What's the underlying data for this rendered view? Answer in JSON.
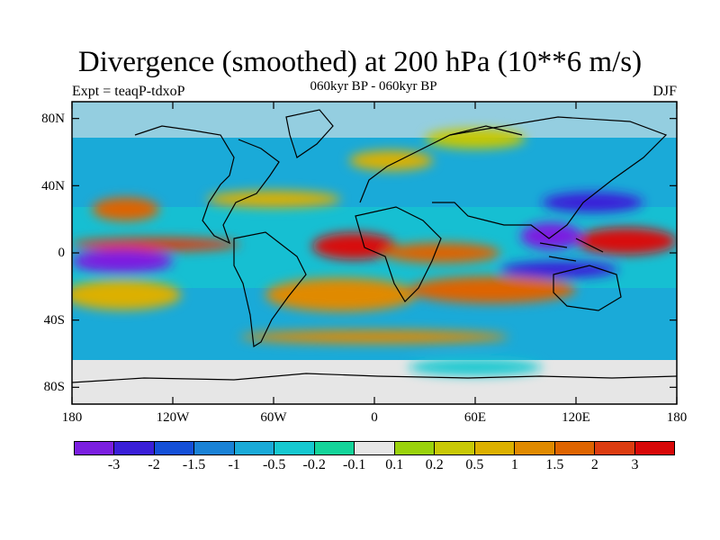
{
  "header": {
    "title": "Divergence (smoothed) at 200 hPa (10**6 m/s)",
    "left_label": "Expt = teaqP-tdxoP",
    "center_label": "060kyr BP - 060kyr BP",
    "right_label": "DJF"
  },
  "axes": {
    "lat_labels": [
      "80N",
      "40N",
      "0",
      "40S",
      "80S"
    ],
    "lon_labels": [
      "180",
      "120W",
      "60W",
      "0",
      "60E",
      "120E",
      "180"
    ]
  },
  "colorbar": {
    "colors": [
      "#7b1fe0",
      "#3a1fd8",
      "#1450d8",
      "#1a82d6",
      "#1aaad8",
      "#16c8d0",
      "#14d49a",
      "#e6e6e6",
      "#9ad20c",
      "#c8c806",
      "#dcb000",
      "#e08a00",
      "#de6400",
      "#dc3c10",
      "#d80808"
    ],
    "labels": [
      "-3",
      "-2",
      "-1.5",
      "-1",
      "-0.5",
      "-0.2",
      "-0.1",
      "0.1",
      "0.2",
      "0.5",
      "1",
      "1.5",
      "2",
      "3"
    ]
  },
  "map_data": {
    "type": "filled-contour",
    "variable": "divergence difference",
    "projection": "cylindrical equidistant",
    "lon_range": [
      -180,
      180
    ],
    "lat_range": [
      -90,
      90
    ],
    "features": [
      {
        "lon": -148,
        "lat": 26,
        "rx": 20,
        "ry": 7,
        "level": 12
      },
      {
        "lon": -60,
        "lat": 32,
        "rx": 40,
        "ry": 5,
        "level": 10
      },
      {
        "lon": -130,
        "lat": 5,
        "rx": 50,
        "ry": 4,
        "level": 13
      },
      {
        "lon": -12,
        "lat": 4,
        "rx": 25,
        "ry": 8,
        "level": 14
      },
      {
        "lon": 40,
        "lat": 0,
        "rx": 35,
        "ry": 6,
        "level": 12
      },
      {
        "lon": 150,
        "lat": 7,
        "rx": 30,
        "ry": 8,
        "level": 14
      },
      {
        "lon": 105,
        "lat": 10,
        "rx": 18,
        "ry": 8,
        "level": 0
      },
      {
        "lon": 130,
        "lat": 30,
        "rx": 30,
        "ry": 6,
        "level": 1
      },
      {
        "lon": -150,
        "lat": -5,
        "rx": 30,
        "ry": 7,
        "level": 0
      },
      {
        "lon": -20,
        "lat": -25,
        "rx": 45,
        "ry": 10,
        "level": 11
      },
      {
        "lon": -150,
        "lat": -25,
        "rx": 35,
        "ry": 9,
        "level": 10
      },
      {
        "lon": 70,
        "lat": -22,
        "rx": 50,
        "ry": 8,
        "level": 12
      },
      {
        "lon": 110,
        "lat": -10,
        "rx": 35,
        "ry": 5,
        "level": 1
      },
      {
        "lon": 10,
        "lat": 55,
        "rx": 25,
        "ry": 6,
        "level": 10
      },
      {
        "lon": 60,
        "lat": 68,
        "rx": 30,
        "ry": 6,
        "level": 9
      },
      {
        "lon": 0,
        "lat": -50,
        "rx": 80,
        "ry": 4,
        "level": 11
      },
      {
        "lon": 60,
        "lat": -68,
        "rx": 40,
        "ry": 5,
        "level": 5
      }
    ]
  }
}
